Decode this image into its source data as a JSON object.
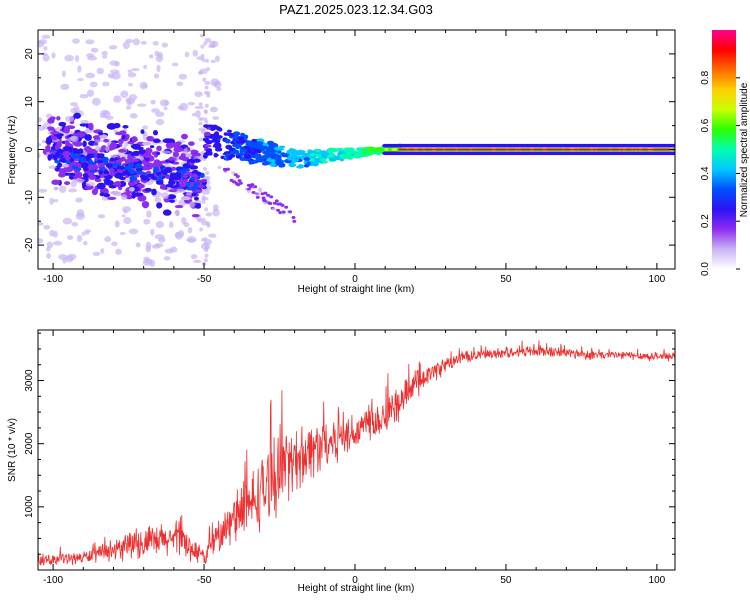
{
  "figure": {
    "title": "PAZ1.2025.023.12.34.G03"
  },
  "chart_data": [
    {
      "type": "heatmap",
      "xlabel": "Height of straight line (km)",
      "ylabel": "Frequency (Hz)",
      "xlim": [
        -105,
        106
      ],
      "ylim": [
        -25,
        25
      ],
      "x_ticks": [
        -100,
        -50,
        0,
        50,
        100
      ],
      "y_ticks": [
        -20,
        -10,
        0,
        10,
        20
      ],
      "colorbar": {
        "label": "Normalized spectral amplitude",
        "range": [
          0,
          1
        ],
        "ticks": [
          "0.0",
          "0.2",
          "0.4",
          "0.6",
          "0.8"
        ],
        "colormap": [
          "#ffffff",
          "#c9b3f5",
          "#8e2cf0",
          "#2b12f2",
          "#0050ff",
          "#00c8ff",
          "#00ffb0",
          "#2bff00",
          "#c8ff00",
          "#ffd000",
          "#ff6a00",
          "#ff0000",
          "#ff0090"
        ]
      },
      "features": {
        "carrier_line_frequency_hz": 0,
        "carrier_line_start_km": 15,
        "noisy_region_km": [
          -105,
          15
        ],
        "gap_near_km": -50
      }
    },
    {
      "type": "line",
      "xlabel": "Height of straight line (km)",
      "ylabel": "SNR (10 * v/v)",
      "xlim": [
        -105,
        106
      ],
      "ylim": [
        0,
        3800
      ],
      "x_ticks": [
        -100,
        -50,
        0,
        50,
        100
      ],
      "y_ticks": [
        1000,
        2000,
        3000
      ],
      "series": [
        {
          "color": "#ee3030",
          "x": [
            -105,
            -100,
            -95,
            -90,
            -85,
            -80,
            -75,
            -70,
            -65,
            -60,
            -55,
            -50,
            -45,
            -40,
            -35,
            -30,
            -25,
            -20,
            -15,
            -10,
            -5,
            0,
            5,
            10,
            15,
            20,
            25,
            30,
            35,
            40,
            45,
            50,
            55,
            60,
            65,
            70,
            75,
            80,
            85,
            90,
            95,
            100,
            106
          ],
          "y": [
            130,
            170,
            180,
            200,
            250,
            300,
            380,
            420,
            450,
            500,
            380,
            200,
            550,
            800,
            1000,
            1300,
            1500,
            1750,
            1900,
            2000,
            2100,
            2200,
            2350,
            2450,
            2650,
            2950,
            3100,
            3250,
            3350,
            3400,
            3420,
            3450,
            3460,
            3470,
            3450,
            3440,
            3420,
            3400,
            3400,
            3400,
            3390,
            3380,
            3380
          ],
          "spread": [
            90,
            100,
            110,
            120,
            150,
            180,
            260,
            300,
            320,
            350,
            280,
            150,
            320,
            450,
            600,
            700,
            700,
            600,
            560,
            500,
            450,
            400,
            380,
            360,
            330,
            280,
            200,
            150,
            120,
            100,
            100,
            100,
            110,
            120,
            110,
            100,
            100,
            90,
            90,
            80,
            80,
            80,
            80
          ]
        }
      ]
    }
  ]
}
